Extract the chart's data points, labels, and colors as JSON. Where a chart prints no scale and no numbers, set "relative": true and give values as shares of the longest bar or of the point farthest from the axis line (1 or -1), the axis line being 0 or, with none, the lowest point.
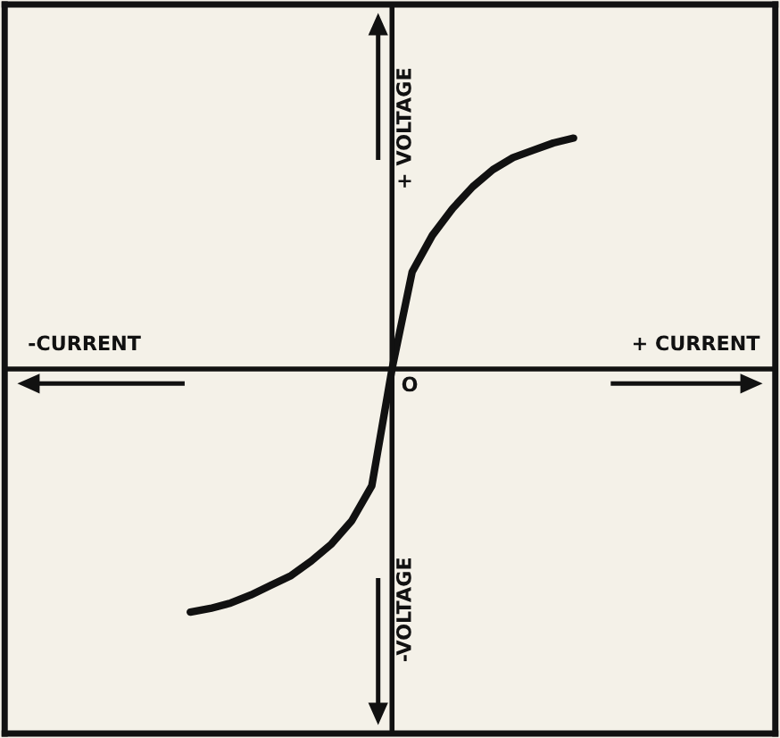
{
  "chart_data": {
    "type": "line",
    "relative": true,
    "color": "#111111",
    "categories": [
      null,
      null,
      null,
      null,
      null,
      null,
      null,
      null,
      null,
      null,
      null,
      null,
      null,
      null,
      null,
      null,
      null,
      null,
      null,
      null
    ],
    "values": [
      -1,
      -0.985,
      -0.963,
      -0.93,
      -0.89,
      -0.85,
      -0.79,
      -0.72,
      -0.625,
      -0.48,
      0,
      0.4,
      0.55,
      0.66,
      0.75,
      0.82,
      0.87,
      0.9,
      0.93,
      0.95
    ],
    "annotations": [
      "+ VOLTAGE",
      "-VOLTAGE",
      "-CURRENT",
      "+ CURRENT",
      "O"
    ],
    "grid": false,
    "legend": false,
    "marker": "none",
    "line_style": "solid"
  }
}
